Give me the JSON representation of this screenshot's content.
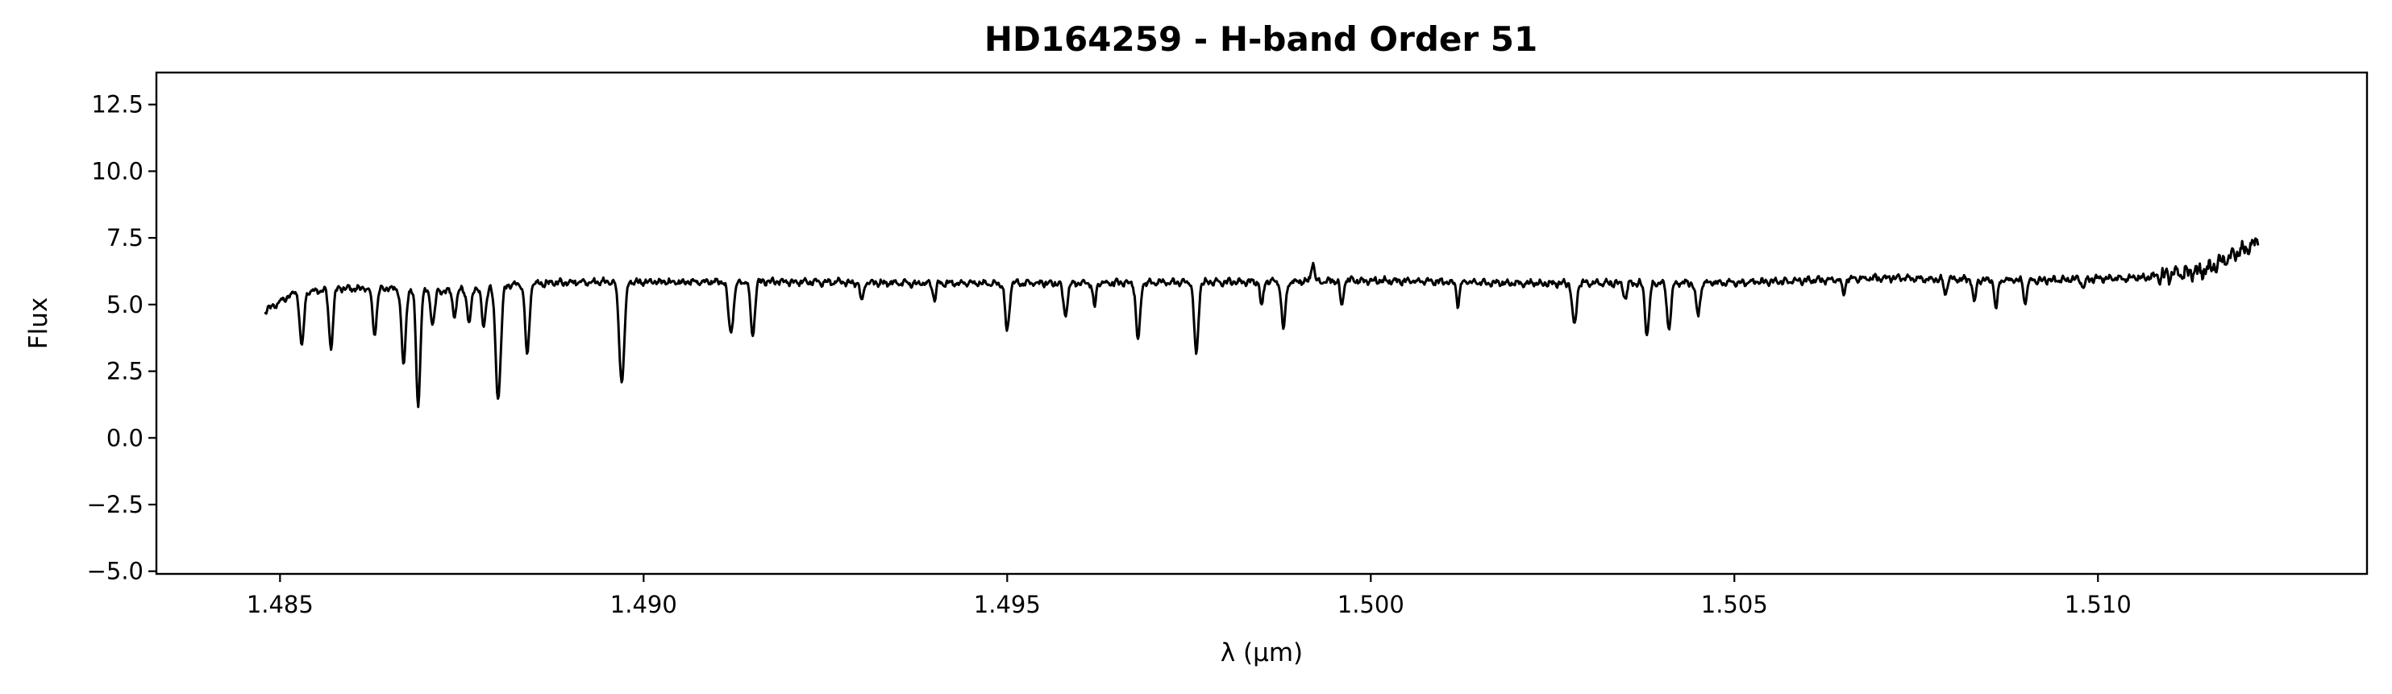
{
  "chart_data": {
    "type": "line",
    "title": "HD164259 - H-band Order 51",
    "xlabel": "λ (μm)",
    "ylabel": "Flux",
    "xlim": [
      1.4833,
      1.5137
    ],
    "ylim": [
      -5.1,
      13.7
    ],
    "xticks": [
      1.485,
      1.49,
      1.495,
      1.5,
      1.505,
      1.51
    ],
    "xtick_labels": [
      "1.485",
      "1.490",
      "1.495",
      "1.500",
      "1.505",
      "1.510"
    ],
    "yticks": [
      -5.0,
      -2.5,
      0.0,
      2.5,
      5.0,
      7.5,
      10.0,
      12.5
    ],
    "ytick_labels": [
      "−5.0",
      "−2.5",
      "0.0",
      "2.5",
      "5.0",
      "7.5",
      "10.0",
      "12.5"
    ],
    "grid": false,
    "line_color": "#000000",
    "series": [
      {
        "continuum": [
          [
            1.4848,
            4.75
          ],
          [
            1.4852,
            5.45
          ],
          [
            1.4858,
            5.6
          ],
          [
            1.4865,
            5.6
          ],
          [
            1.4872,
            5.5
          ],
          [
            1.488,
            5.7
          ],
          [
            1.489,
            5.85
          ],
          [
            1.49,
            5.85
          ],
          [
            1.492,
            5.85
          ],
          [
            1.494,
            5.8
          ],
          [
            1.496,
            5.8
          ],
          [
            1.498,
            5.85
          ],
          [
            1.5,
            5.9
          ],
          [
            1.502,
            5.8
          ],
          [
            1.504,
            5.8
          ],
          [
            1.5055,
            5.85
          ],
          [
            1.507,
            6.0
          ],
          [
            1.509,
            5.9
          ],
          [
            1.5105,
            6.0
          ],
          [
            1.511,
            6.1
          ],
          [
            1.5115,
            6.3
          ],
          [
            1.5119,
            6.9
          ],
          [
            1.5122,
            7.35
          ]
        ],
        "absorption_lines": [
          [
            1.4853,
            3.4,
            4e-05
          ],
          [
            1.4857,
            3.4,
            4e-05
          ],
          [
            1.4863,
            3.9,
            4e-05
          ],
          [
            1.4867,
            2.7,
            4e-05
          ],
          [
            1.4869,
            1.2,
            4e-05
          ],
          [
            1.4871,
            4.3,
            4e-05
          ],
          [
            1.4874,
            4.6,
            4e-05
          ],
          [
            1.4876,
            4.3,
            4e-05
          ],
          [
            1.4878,
            4.2,
            4e-05
          ],
          [
            1.488,
            1.5,
            5e-05
          ],
          [
            1.4884,
            3.1,
            4e-05
          ],
          [
            1.4897,
            2.1,
            5e-05
          ],
          [
            1.4912,
            4.0,
            5e-05
          ],
          [
            1.4915,
            3.8,
            4e-05
          ],
          [
            1.493,
            5.1,
            3e-05
          ],
          [
            1.494,
            5.2,
            3e-05
          ],
          [
            1.495,
            4.0,
            4e-05
          ],
          [
            1.4958,
            4.6,
            4e-05
          ],
          [
            1.4962,
            4.9,
            3e-05
          ],
          [
            1.4968,
            3.7,
            4e-05
          ],
          [
            1.4976,
            3.1,
            4e-05
          ],
          [
            1.4985,
            4.9,
            3e-05
          ],
          [
            1.4988,
            4.1,
            4e-05
          ],
          [
            1.4996,
            4.9,
            3e-05
          ],
          [
            1.5012,
            5.0,
            3e-05
          ],
          [
            1.5028,
            4.2,
            4e-05
          ],
          [
            1.5035,
            5.2,
            3e-05
          ],
          [
            1.5038,
            3.9,
            4e-05
          ],
          [
            1.5041,
            4.1,
            4e-05
          ],
          [
            1.5045,
            4.6,
            4e-05
          ],
          [
            1.5065,
            5.4,
            3e-05
          ],
          [
            1.5079,
            5.4,
            3e-05
          ],
          [
            1.5083,
            5.0,
            3e-05
          ],
          [
            1.5086,
            4.8,
            3e-05
          ],
          [
            1.509,
            5.0,
            3e-05
          ],
          [
            1.5098,
            5.6,
            3e-05
          ]
        ],
        "emission_peaks": [
          [
            1.4992,
            6.6,
            3e-05
          ]
        ]
      }
    ]
  }
}
